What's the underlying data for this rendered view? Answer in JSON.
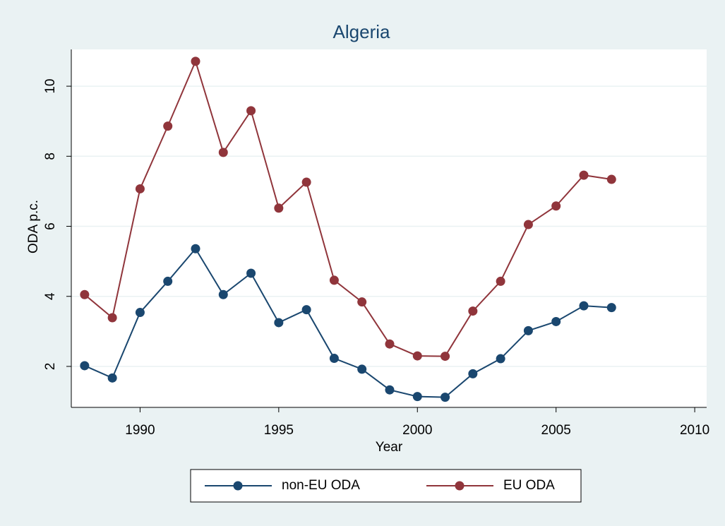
{
  "chart_data": {
    "type": "line",
    "title": "Algeria",
    "xlabel": "Year",
    "ylabel": "ODA p.c.",
    "x": [
      1988,
      1989,
      1990,
      1991,
      1992,
      1993,
      1994,
      1995,
      1996,
      1997,
      1998,
      1999,
      2000,
      2001,
      2002,
      2003,
      2004,
      2005,
      2006,
      2007
    ],
    "series": [
      {
        "name": "non-EU ODA",
        "color": "#1a476f",
        "values": [
          2.02,
          1.67,
          3.54,
          4.43,
          5.36,
          4.05,
          4.66,
          3.25,
          3.62,
          2.23,
          1.92,
          1.33,
          1.14,
          1.12,
          1.79,
          2.22,
          3.02,
          3.28,
          3.73,
          3.68
        ]
      },
      {
        "name": "EU ODA",
        "color": "#90353b",
        "values": [
          4.05,
          3.39,
          7.07,
          8.86,
          10.71,
          8.11,
          9.3,
          6.52,
          7.26,
          4.46,
          3.84,
          2.64,
          2.3,
          2.29,
          3.58,
          4.43,
          6.05,
          6.58,
          7.46,
          7.34
        ]
      }
    ],
    "xlim": [
      1987.52,
      2010.43
    ],
    "xticks": [
      1990,
      1995,
      2000,
      2005,
      2010
    ],
    "ylim": [
      0.83,
      11.05
    ],
    "yticks": [
      2,
      4,
      6,
      8,
      10
    ],
    "grid": true,
    "legend": "bottom"
  }
}
